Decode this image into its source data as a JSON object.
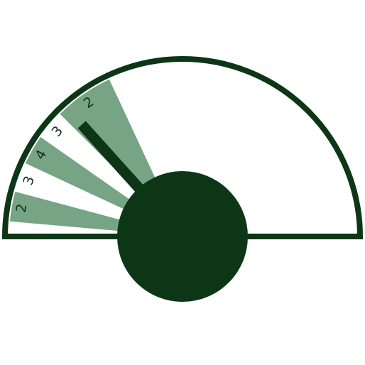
{
  "colors": {
    "dark": "#0c3616",
    "light": "#77a484",
    "background": "#ffffff"
  },
  "gauge": {
    "arc_from_deg": 0,
    "arc_to_deg": 180,
    "needle_deg": 132,
    "segments": [
      {
        "label": "2",
        "from_deg": 165,
        "to_deg": 175,
        "filled": true
      },
      {
        "label": "3",
        "from_deg": 155,
        "to_deg": 165,
        "filled": false
      },
      {
        "label": "4",
        "from_deg": 145,
        "to_deg": 155,
        "filled": true
      },
      {
        "label": "3",
        "from_deg": 135,
        "to_deg": 145,
        "filled": false
      },
      {
        "label": "2",
        "from_deg": 115,
        "to_deg": 135,
        "filled": true
      }
    ]
  }
}
